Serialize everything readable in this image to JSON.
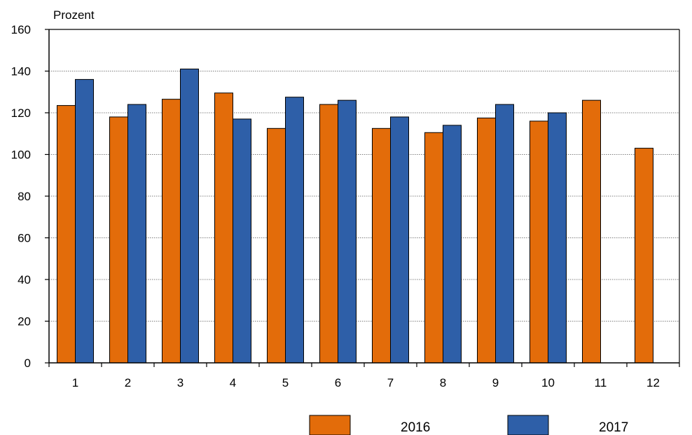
{
  "chart_data": {
    "type": "bar",
    "ylabel": "Prozent",
    "ylim": [
      0,
      160
    ],
    "yticks": [
      0,
      20,
      40,
      60,
      80,
      100,
      120,
      140,
      160
    ],
    "categories": [
      "1",
      "2",
      "3",
      "4",
      "5",
      "6",
      "7",
      "8",
      "9",
      "10",
      "11",
      "12"
    ],
    "series": [
      {
        "name": "2016",
        "color": "#e36c0a",
        "values": [
          123.5,
          118,
          126.5,
          129.5,
          112.5,
          124,
          112.5,
          110.5,
          117.5,
          116,
          126,
          103
        ]
      },
      {
        "name": "2017",
        "color": "#2e5fa8",
        "values": [
          136,
          124,
          141,
          117,
          127.5,
          126,
          118,
          114,
          124,
          120,
          null,
          null
        ]
      }
    ],
    "grid": "horizontal dotted",
    "legend_position": "bottom"
  }
}
